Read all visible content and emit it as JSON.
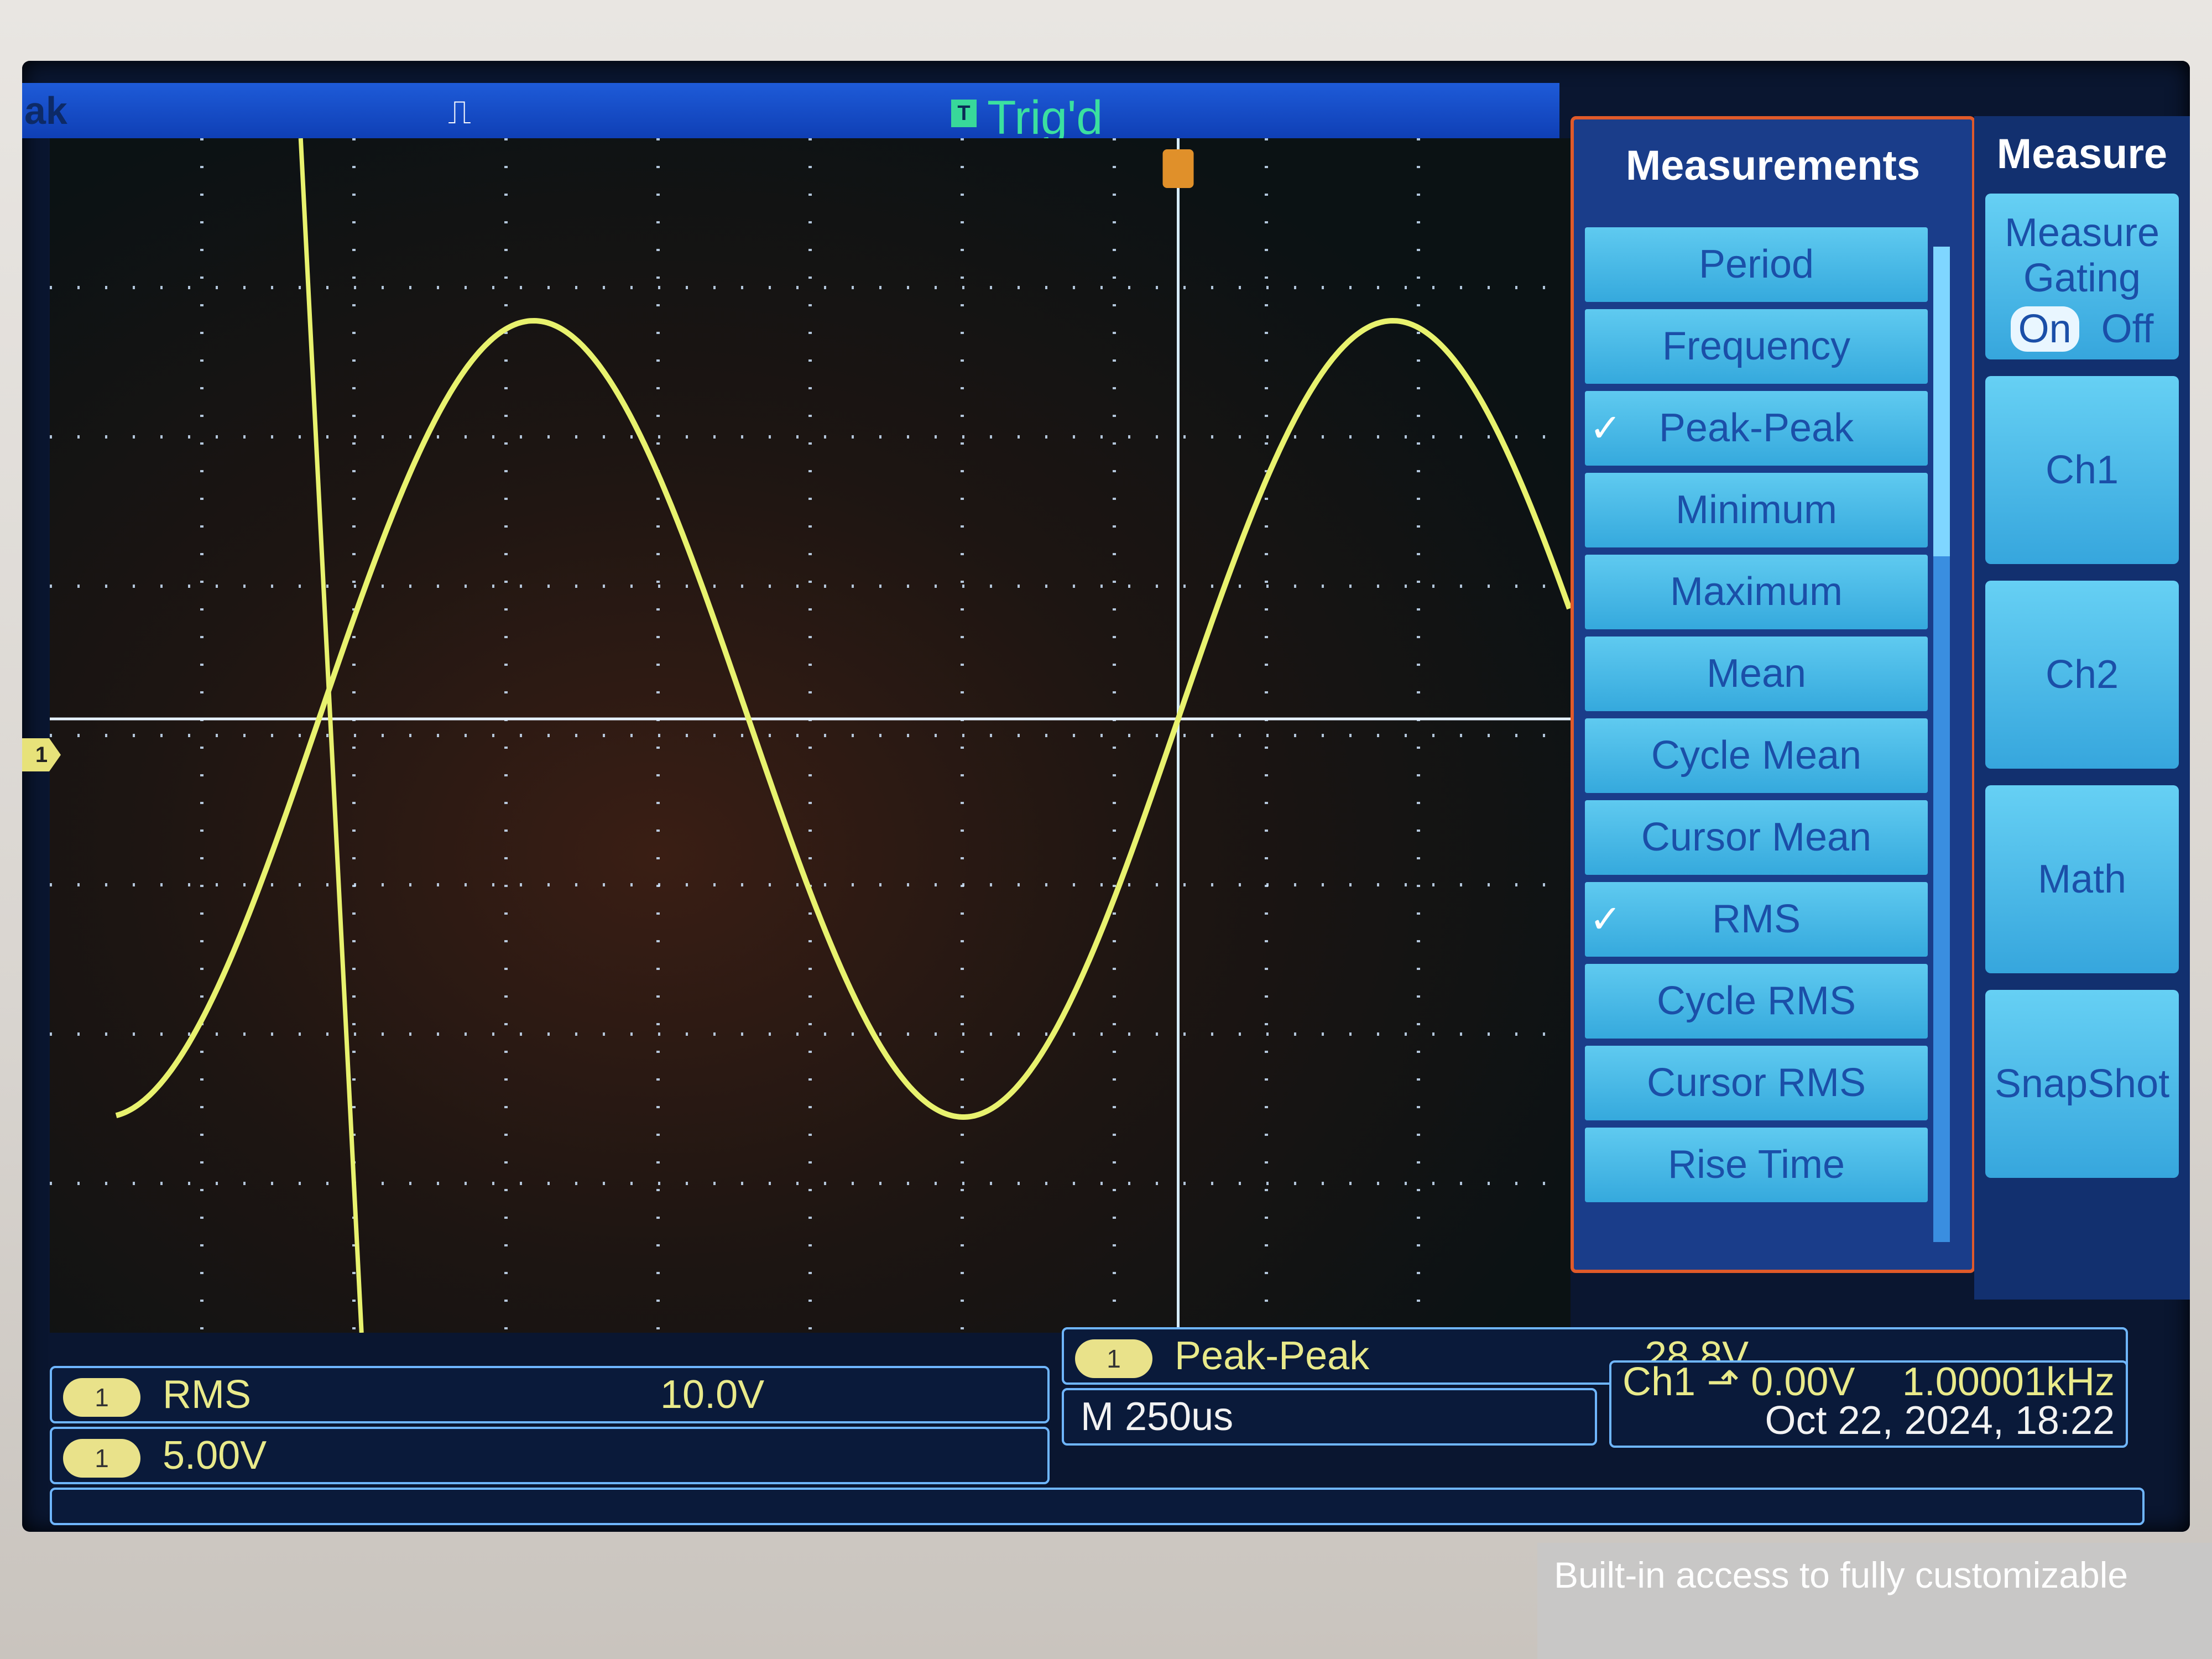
{
  "topbar": {
    "left_text": "ak",
    "pulse_glyph": "⎍",
    "trigger_badge": "T",
    "trigger_status": "Trig'd"
  },
  "channel_marker": "1",
  "waveform": {
    "type": "sine",
    "color": "#e8f26e",
    "frequency_khz": 1.00001,
    "peak_peak_v": 28.8,
    "rms_v": 10.0,
    "volts_per_div": 5.0,
    "time_per_div_us": 250
  },
  "measurements_menu": {
    "title": "Measurements",
    "items": [
      {
        "label": "Period",
        "checked": false
      },
      {
        "label": "Frequency",
        "checked": false
      },
      {
        "label": "Peak-Peak",
        "checked": true
      },
      {
        "label": "Minimum",
        "checked": false
      },
      {
        "label": "Maximum",
        "checked": false
      },
      {
        "label": "Mean",
        "checked": false
      },
      {
        "label": "Cycle Mean",
        "checked": false
      },
      {
        "label": "Cursor Mean",
        "checked": false
      },
      {
        "label": "RMS",
        "checked": true
      },
      {
        "label": "Cycle RMS",
        "checked": false
      },
      {
        "label": "Cursor RMS",
        "checked": false
      },
      {
        "label": "Rise Time",
        "checked": false
      }
    ]
  },
  "soft_keys": {
    "title": "Measure",
    "gating_label_1": "Measure",
    "gating_label_2": "Gating",
    "gating_on": "On",
    "gating_off": "Off",
    "ch1": "Ch1",
    "ch2": "Ch2",
    "math": "Math",
    "snapshot": "SnapShot"
  },
  "readouts": {
    "rms_channel": "1",
    "rms_label": "RMS",
    "rms_value": "10.0V",
    "peak_channel": "1",
    "peak_label": "Peak-Peak",
    "peak_value": "28.8V",
    "scale_channel": "1",
    "scale_value": "5.00V",
    "timebase": "M 250us",
    "trigger_info": "Ch1 ⬏ 0.00V",
    "frequency": "1.00001kHz",
    "datetime": "Oct 22, 2024, 18:22"
  },
  "sticker_text": "Built-in access to fully customizable"
}
